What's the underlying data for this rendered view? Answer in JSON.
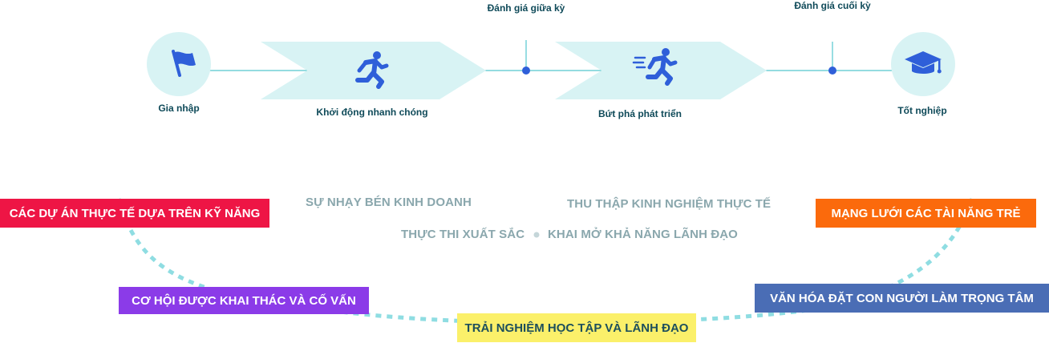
{
  "timeline": {
    "steps": [
      {
        "label": "Gia nhập",
        "icon": "flag-icon"
      },
      {
        "label": "Khởi động nhanh chóng",
        "icon": "running-person-icon"
      },
      {
        "label": "Bứt phá phát triển",
        "icon": "sprinting-person-icon"
      },
      {
        "label": "Tốt nghiệp",
        "icon": "graduation-cap-icon"
      }
    ],
    "checkpoints": [
      {
        "label": "Đánh giá giữa kỳ"
      },
      {
        "label": "Đánh giá cuối kỳ"
      }
    ],
    "colors": {
      "circle_fill": "#d8f3f4",
      "arrow_fill": "#d8f3f4",
      "line": "#54c6ce",
      "icon": "#2f5fd9",
      "dot": "#2f5fd9",
      "label": "#0f4a59"
    }
  },
  "skills": {
    "items": [
      "SỰ NHẠY BÉN KINH DOANH",
      "THU THẬP KINH NGHIỆM THỰC TẾ",
      "THỰC THI XUẤT SẮC",
      "KHAI MỞ KHẢ NĂNG LÃNH ĐẠO"
    ],
    "color": "#8aa7ad"
  },
  "tags": [
    {
      "label": "CÁC DỰ ÁN THỰC TẾ DỰA TRÊN  KỸ NĂNG",
      "bg": "#ee1545",
      "fg": "#ffffff"
    },
    {
      "label": "CƠ HỘI ĐƯỢC KHAI THÁC VÀ CỐ VẤN",
      "bg": "#8b3be8",
      "fg": "#ffffff"
    },
    {
      "label": "TRẢI NGHIỆM HỌC TẬP VÀ LÃNH ĐẠO",
      "bg": "#fbf06a",
      "fg": "#1d4f5c"
    },
    {
      "label": "VĂN HÓA ĐẶT CON NGƯỜI LÀM TRỌNG TÂM",
      "bg": "#4a6db5",
      "fg": "#ffffff"
    },
    {
      "label": "MẠNG LƯỚI CÁC TÀI NĂNG TRẺ",
      "bg": "#fb6a0c",
      "fg": "#ffffff"
    }
  ],
  "arc_color": "#8fdde2"
}
